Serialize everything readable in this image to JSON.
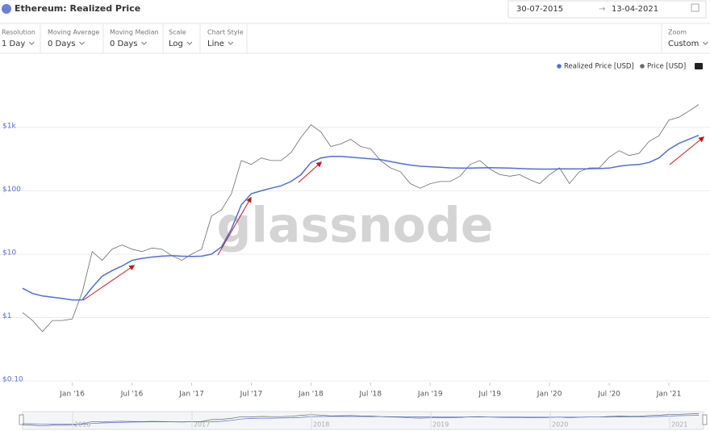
{
  "header": {
    "title": "Ethereum: Realized Price",
    "date_from": "30-07-2015",
    "date_to": "13-04-2021"
  },
  "controls": [
    {
      "label": "Resolution",
      "value": "1 Day"
    },
    {
      "label": "Moving Average",
      "value": "0 Days"
    },
    {
      "label": "Moving Median",
      "value": "0 Days"
    },
    {
      "label": "Scale",
      "value": "Log"
    },
    {
      "label": "Chart Style",
      "value": "Line"
    },
    {
      "label": "Zoom",
      "value": "Custom"
    }
  ],
  "chart_data": {
    "type": "line",
    "watermark": "glassnode",
    "log": true,
    "grid": true,
    "legend": "top-right",
    "x": [
      "2015-08",
      "2015-09",
      "2015-10",
      "2015-11",
      "2015-12",
      "2016-01",
      "2016-02",
      "2016-03",
      "2016-04",
      "2016-05",
      "2016-06",
      "2016-07",
      "2016-08",
      "2016-09",
      "2016-10",
      "2016-11",
      "2016-12",
      "2017-01",
      "2017-02",
      "2017-03",
      "2017-04",
      "2017-05",
      "2017-06",
      "2017-07",
      "2017-08",
      "2017-09",
      "2017-10",
      "2017-11",
      "2017-12",
      "2018-01",
      "2018-02",
      "2018-03",
      "2018-04",
      "2018-05",
      "2018-06",
      "2018-07",
      "2018-08",
      "2018-09",
      "2018-10",
      "2018-11",
      "2018-12",
      "2019-01",
      "2019-02",
      "2019-03",
      "2019-04",
      "2019-05",
      "2019-06",
      "2019-07",
      "2019-08",
      "2019-09",
      "2019-10",
      "2019-11",
      "2019-12",
      "2020-01",
      "2020-02",
      "2020-03",
      "2020-04",
      "2020-05",
      "2020-06",
      "2020-07",
      "2020-08",
      "2020-09",
      "2020-10",
      "2020-11",
      "2020-12",
      "2021-01",
      "2021-02",
      "2021-03",
      "2021-04"
    ],
    "series": [
      {
        "name": "Realized Price [USD]",
        "color": "#4f6fd8",
        "values": [
          2.9,
          2.4,
          2.2,
          2.1,
          2.0,
          1.9,
          1.9,
          3,
          4.5,
          5.5,
          6.5,
          8,
          8.6,
          9,
          9.3,
          9.5,
          9.3,
          9.2,
          9.3,
          10,
          13,
          25,
          60,
          90,
          100,
          110,
          120,
          140,
          180,
          280,
          330,
          350,
          350,
          340,
          330,
          320,
          310,
          290,
          270,
          255,
          245,
          240,
          235,
          230,
          228,
          228,
          230,
          232,
          230,
          228,
          225,
          222,
          220,
          220,
          222,
          222,
          222,
          223,
          225,
          228,
          245,
          255,
          260,
          280,
          330,
          450,
          560,
          650,
          750
        ]
      },
      {
        "name": "Price [USD]",
        "color": "#6b6b6b",
        "values": [
          1.2,
          0.9,
          0.6,
          0.9,
          0.9,
          0.95,
          2.5,
          11,
          8,
          12,
          14,
          12,
          11,
          12.5,
          12,
          9.5,
          8,
          10,
          12,
          40,
          50,
          90,
          300,
          260,
          330,
          300,
          300,
          400,
          700,
          1100,
          850,
          500,
          550,
          650,
          500,
          460,
          300,
          230,
          200,
          130,
          110,
          130,
          140,
          140,
          170,
          260,
          300,
          220,
          180,
          170,
          180,
          150,
          130,
          180,
          230,
          130,
          200,
          230,
          230,
          340,
          430,
          360,
          390,
          600,
          740,
          1300,
          1450,
          1800,
          2300
        ]
      }
    ],
    "xlim": [
      "2015-08",
      "2021-04"
    ],
    "xticks": [
      {
        "value": "2016-01",
        "label": "Jan '16"
      },
      {
        "value": "2016-07",
        "label": "Jul '16"
      },
      {
        "value": "2017-01",
        "label": "Jan '17"
      },
      {
        "value": "2017-07",
        "label": "Jul '17"
      },
      {
        "value": "2018-01",
        "label": "Jan '18"
      },
      {
        "value": "2018-07",
        "label": "Jul '18"
      },
      {
        "value": "2019-01",
        "label": "Jan '19"
      },
      {
        "value": "2019-07",
        "label": "Jul '19"
      },
      {
        "value": "2020-01",
        "label": "Jan '20"
      },
      {
        "value": "2020-07",
        "label": "Jul '20"
      },
      {
        "value": "2021-01",
        "label": "Jan '21"
      }
    ],
    "ylim": [
      0.1,
      5000
    ],
    "yticks": [
      {
        "value": 0.1,
        "label": "$0.10"
      },
      {
        "value": 1,
        "label": "$1"
      },
      {
        "value": 10,
        "label": "$10"
      },
      {
        "value": 100,
        "label": "$100"
      },
      {
        "value": 1000,
        "label": "$1k"
      }
    ]
  },
  "navigator": {
    "labels": [
      "2016",
      "2017",
      "2018",
      "2019",
      "2020",
      "2021"
    ]
  }
}
